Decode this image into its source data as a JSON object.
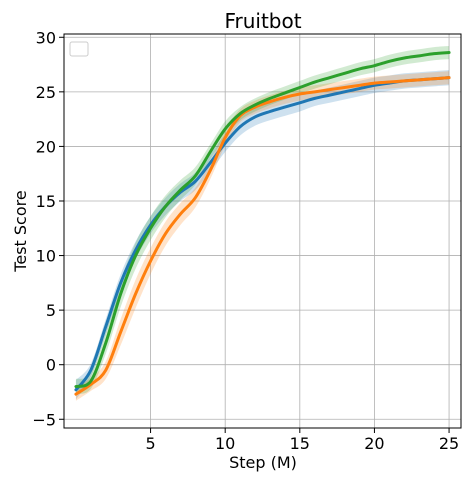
{
  "chart_data": {
    "type": "line",
    "title": "Fruitbot",
    "xlabel": "Step (M)",
    "ylabel": "Test Score",
    "xlim": [
      -0.8,
      25.8
    ],
    "ylim": [
      -5.8,
      30.3
    ],
    "x_ticks": [
      5,
      10,
      15,
      20,
      25
    ],
    "y_ticks": [
      -5,
      0,
      5,
      10,
      15,
      20,
      25,
      30
    ],
    "grid": true,
    "legend": "top-left (empty)",
    "series": [
      {
        "color": "#1f77b4",
        "x": [
          0.0,
          1.0,
          2.0,
          3.0,
          4.0,
          5.0,
          6.0,
          7.0,
          8.0,
          9.0,
          10.0,
          11.0,
          12.0,
          13.0,
          14.0,
          15.0,
          16.0,
          17.0,
          18.0,
          19.0,
          20.0,
          21.0,
          22.0,
          23.0,
          24.0,
          25.0
        ],
        "values": [
          -2.3,
          -0.5,
          3.5,
          7.5,
          10.5,
          12.8,
          14.5,
          15.8,
          16.8,
          18.5,
          20.3,
          21.8,
          22.7,
          23.2,
          23.6,
          24.0,
          24.4,
          24.7,
          25.0,
          25.3,
          25.6,
          25.8,
          26.0,
          26.1,
          26.2,
          26.3
        ],
        "band": [
          0.9,
          0.6,
          0.7,
          0.8,
          0.8,
          0.8,
          0.8,
          0.8,
          0.8,
          0.8,
          0.8,
          0.8,
          0.8,
          0.8,
          0.8,
          0.8,
          0.7,
          0.7,
          0.7,
          0.7,
          0.7,
          0.7,
          0.7,
          0.7,
          0.7,
          0.7
        ]
      },
      {
        "color": "#ff7f0e",
        "x": [
          0.0,
          1.0,
          2.0,
          3.0,
          4.0,
          5.0,
          6.0,
          7.0,
          8.0,
          9.0,
          10.0,
          11.0,
          12.0,
          13.0,
          14.0,
          15.0,
          16.0,
          17.0,
          18.0,
          19.0,
          20.0,
          21.0,
          22.0,
          23.0,
          24.0,
          25.0
        ],
        "values": [
          -2.7,
          -1.8,
          -0.5,
          3.0,
          6.5,
          9.5,
          12.0,
          13.8,
          15.3,
          17.8,
          20.8,
          22.8,
          23.6,
          24.1,
          24.5,
          24.8,
          25.0,
          25.2,
          25.4,
          25.6,
          25.8,
          25.9,
          26.0,
          26.1,
          26.2,
          26.3
        ],
        "band": [
          0.6,
          0.6,
          0.8,
          1.2,
          1.3,
          1.2,
          1.1,
          1.0,
          0.9,
          0.8,
          0.7,
          0.6,
          0.6,
          0.6,
          0.6,
          0.6,
          0.6,
          0.6,
          0.6,
          0.6,
          0.6,
          0.6,
          0.6,
          0.6,
          0.6,
          0.6
        ]
      },
      {
        "color": "#2ca02c",
        "x": [
          0.0,
          1.0,
          2.0,
          3.0,
          4.0,
          5.0,
          6.0,
          7.0,
          8.0,
          9.0,
          10.0,
          11.0,
          12.0,
          13.0,
          14.0,
          15.0,
          16.0,
          17.0,
          18.0,
          19.0,
          20.0,
          21.0,
          22.0,
          23.0,
          24.0,
          25.0
        ],
        "values": [
          -2.0,
          -1.5,
          2.0,
          6.5,
          10.0,
          12.5,
          14.5,
          16.0,
          17.3,
          19.5,
          21.6,
          23.0,
          23.8,
          24.4,
          24.9,
          25.4,
          25.9,
          26.3,
          26.7,
          27.1,
          27.4,
          27.8,
          28.1,
          28.3,
          28.5,
          28.6
        ],
        "band": [
          0.7,
          0.7,
          1.0,
          1.2,
          1.2,
          1.1,
          1.0,
          0.9,
          0.8,
          0.7,
          0.7,
          0.6,
          0.6,
          0.6,
          0.6,
          0.6,
          0.6,
          0.6,
          0.6,
          0.6,
          0.6,
          0.6,
          0.6,
          0.6,
          0.6,
          0.6
        ]
      }
    ]
  }
}
